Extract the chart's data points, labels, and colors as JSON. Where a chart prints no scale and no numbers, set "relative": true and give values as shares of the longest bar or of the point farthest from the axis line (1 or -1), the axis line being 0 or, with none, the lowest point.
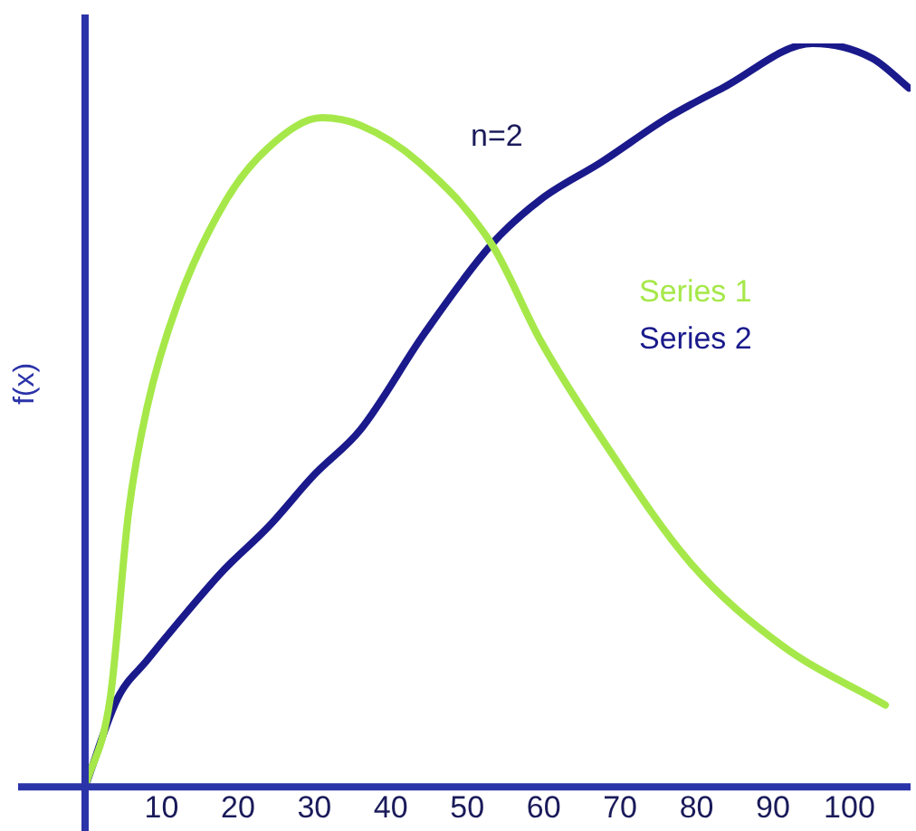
{
  "chart_data": {
    "type": "line",
    "ylabel": "f(x)",
    "relative": true,
    "xlim": [
      0,
      108
    ],
    "xticks": [
      10,
      20,
      30,
      40,
      50,
      60,
      70,
      80,
      90,
      100
    ],
    "annotations": [
      "n=2"
    ],
    "grid": false,
    "legend": "right",
    "marker": "none",
    "line_style": "solid",
    "series": [
      {
        "name": "Series 1",
        "color": "#a6e84a",
        "x": [
          0,
          3.3,
          5.7,
          8.1,
          12.1,
          18.5,
          24,
          31,
          36,
          43.7,
          53.2,
          59.6,
          67.5,
          79.3,
          91.2,
          104.7
        ],
        "values": [
          0,
          0.12,
          0.37,
          0.51,
          0.65,
          0.79,
          0.86,
          0.9,
          0.89,
          0.84,
          0.73,
          0.6,
          0.47,
          0.3,
          0.19,
          0.11
        ]
      },
      {
        "name": "Series 2",
        "color": "#1a1a8c",
        "x": [
          0,
          4.3,
          8.1,
          12.1,
          18,
          24,
          30,
          36,
          44.4,
          53.2,
          59.6,
          67.5,
          76.2,
          83.4,
          95.2,
          103,
          107.8
        ],
        "values": [
          0,
          0.12,
          0.17,
          0.22,
          0.29,
          0.35,
          0.42,
          0.48,
          0.61,
          0.73,
          0.79,
          0.84,
          0.9,
          0.94,
          1,
          0.98,
          0.94
        ]
      }
    ]
  }
}
